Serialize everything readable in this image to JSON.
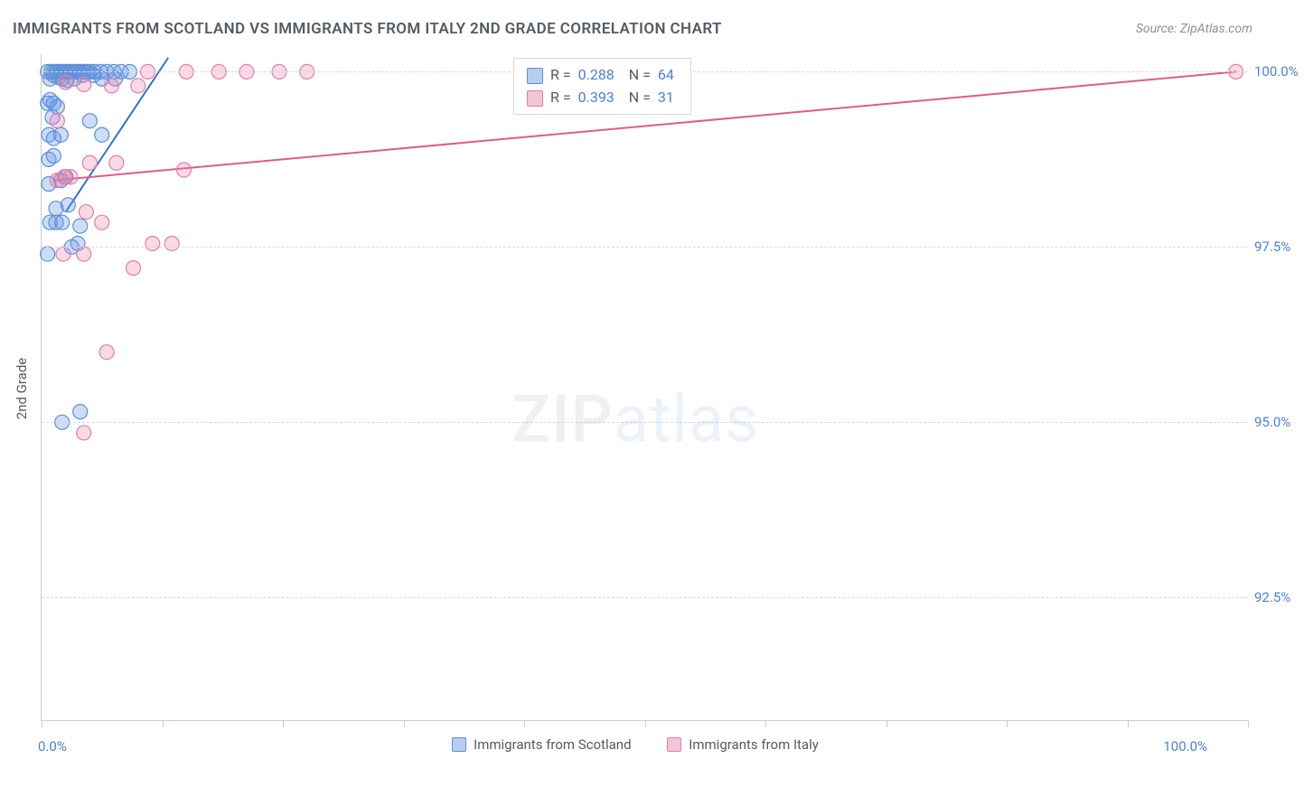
{
  "title": "IMMIGRANTS FROM SCOTLAND VS IMMIGRANTS FROM ITALY 2ND GRADE CORRELATION CHART",
  "source_label": "Source: ZipAtlas.com",
  "watermark": {
    "left": "ZIP",
    "right": "atlas"
  },
  "chart": {
    "type": "scatter",
    "x_axis": {
      "min": 0.0,
      "max": 100.0,
      "tick_step": 10.0,
      "label_left": "0.0%",
      "label_right": "100.0%"
    },
    "y_axis": {
      "title": "2nd Grade",
      "min": 90.75,
      "max": 100.25,
      "ticks": [
        92.5,
        95.0,
        97.5,
        100.0
      ],
      "tick_labels": [
        "92.5%",
        "95.0%",
        "97.5%",
        "100.0%"
      ]
    },
    "grid_color": "#d6d9dd",
    "axis_color": "#c9cdd3",
    "background_color": "#ffffff",
    "marker_radius": 8,
    "marker_stroke_width": 1.2,
    "line_width": 2,
    "series": [
      {
        "name": "Immigrants from Scotland",
        "fill_color": "rgba(100,150,230,0.32)",
        "stroke_color": "#5d8fd7",
        "line_color": "#356fc7",
        "swatch_fill": "#b6cef2",
        "swatch_border": "#5d8fd7",
        "R": "0.288",
        "N": "64",
        "trend": {
          "x1": 2.0,
          "y1": 98.0,
          "x2": 10.5,
          "y2": 100.2
        },
        "points": [
          [
            0.5,
            100.0
          ],
          [
            0.8,
            100.0
          ],
          [
            1.0,
            100.0
          ],
          [
            1.2,
            100.0
          ],
          [
            1.4,
            100.0
          ],
          [
            1.6,
            100.0
          ],
          [
            1.8,
            100.0
          ],
          [
            2.0,
            100.0
          ],
          [
            2.2,
            100.0
          ],
          [
            2.4,
            100.0
          ],
          [
            2.6,
            100.0
          ],
          [
            2.8,
            100.0
          ],
          [
            3.0,
            100.0
          ],
          [
            3.2,
            100.0
          ],
          [
            3.4,
            100.0
          ],
          [
            3.6,
            100.0
          ],
          [
            3.8,
            100.0
          ],
          [
            4.0,
            100.0
          ],
          [
            4.4,
            100.0
          ],
          [
            4.9,
            100.0
          ],
          [
            5.4,
            100.0
          ],
          [
            6.0,
            100.0
          ],
          [
            6.6,
            100.0
          ],
          [
            7.3,
            100.0
          ],
          [
            0.7,
            99.9
          ],
          [
            1.0,
            99.95
          ],
          [
            1.4,
            99.92
          ],
          [
            1.7,
            99.9
          ],
          [
            2.1,
            99.88
          ],
          [
            2.7,
            99.9
          ],
          [
            3.4,
            99.95
          ],
          [
            4.3,
            99.95
          ],
          [
            5.0,
            99.9
          ],
          [
            6.1,
            99.9
          ],
          [
            0.5,
            99.55
          ],
          [
            0.7,
            99.6
          ],
          [
            1.0,
            99.55
          ],
          [
            1.3,
            99.5
          ],
          [
            0.9,
            99.35
          ],
          [
            0.6,
            99.1
          ],
          [
            1.0,
            99.05
          ],
          [
            1.6,
            99.1
          ],
          [
            0.6,
            98.75
          ],
          [
            1.0,
            98.8
          ],
          [
            5.0,
            99.1
          ],
          [
            0.6,
            98.4
          ],
          [
            1.6,
            98.45
          ],
          [
            2.0,
            98.5
          ],
          [
            1.2,
            98.05
          ],
          [
            2.2,
            98.1
          ],
          [
            0.7,
            97.85
          ],
          [
            1.2,
            97.85
          ],
          [
            1.7,
            97.85
          ],
          [
            3.2,
            97.8
          ],
          [
            2.5,
            97.5
          ],
          [
            3.0,
            97.55
          ],
          [
            0.5,
            97.4
          ],
          [
            3.2,
            95.15
          ],
          [
            1.7,
            95.0
          ],
          [
            4.0,
            99.3
          ]
        ]
      },
      {
        "name": "Immigrants from Italy",
        "fill_color": "rgba(235,130,170,0.30)",
        "stroke_color": "#e07fa8",
        "line_color": "#de5c8d",
        "swatch_fill": "#f4c5d7",
        "swatch_border": "#e07fa8",
        "R": "0.393",
        "N": "31",
        "trend": {
          "x1": 1.0,
          "y1": 98.45,
          "x2": 99.0,
          "y2": 100.0
        },
        "points": [
          [
            8.8,
            100.0
          ],
          [
            12.0,
            100.0
          ],
          [
            14.7,
            100.0
          ],
          [
            17.0,
            100.0
          ],
          [
            19.7,
            100.0
          ],
          [
            22.0,
            100.0
          ],
          [
            99.0,
            100.0
          ],
          [
            2.0,
            99.85
          ],
          [
            3.5,
            99.82
          ],
          [
            5.8,
            99.8
          ],
          [
            8.0,
            99.8
          ],
          [
            1.3,
            99.3
          ],
          [
            4.0,
            98.7
          ],
          [
            6.2,
            98.7
          ],
          [
            1.3,
            98.45
          ],
          [
            1.9,
            98.5
          ],
          [
            2.4,
            98.5
          ],
          [
            3.7,
            98.0
          ],
          [
            11.8,
            98.6
          ],
          [
            5.0,
            97.85
          ],
          [
            9.2,
            97.55
          ],
          [
            10.8,
            97.55
          ],
          [
            1.8,
            97.4
          ],
          [
            3.5,
            97.4
          ],
          [
            7.6,
            97.2
          ],
          [
            3.5,
            94.85
          ],
          [
            5.4,
            96.0
          ]
        ]
      }
    ],
    "legend": {
      "items": [
        {
          "label": "Immigrants from Scotland",
          "fill": "#b6cef2",
          "border": "#5d8fd7"
        },
        {
          "label": "Immigrants from Italy",
          "fill": "#f4c5d7",
          "border": "#e07fa8"
        }
      ]
    }
  }
}
